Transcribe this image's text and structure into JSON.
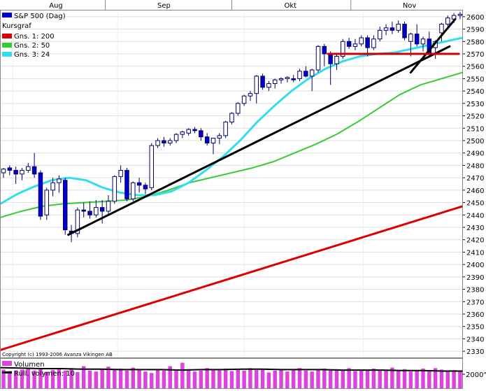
{
  "chart_data": [
    {
      "type": "candlestick",
      "title": "S&P 500 (Dag)",
      "months": [
        "Aug",
        "Sep",
        "Okt",
        "Nov"
      ],
      "ylim": [
        2325,
        2605
      ],
      "y_ticks": [
        2330,
        2340,
        2350,
        2360,
        2370,
        2380,
        2390,
        2400,
        2410,
        2420,
        2430,
        2440,
        2450,
        2460,
        2470,
        2480,
        2490,
        2500,
        2510,
        2520,
        2530,
        2540,
        2550,
        2560,
        2570,
        2580,
        2590,
        2600
      ],
      "grid": true,
      "legend_position": "top-left",
      "legend": [
        {
          "label": "S&P 500 (Dag)",
          "color": "#0000cc"
        },
        {
          "label": "Kursgraf",
          "color": ""
        },
        {
          "label": "Gns. 1: 200",
          "color": "#dd0000"
        },
        {
          "label": "Gns. 2: 50",
          "color": "#33cc33"
        },
        {
          "label": "Gns. 3: 24",
          "color": "#33ddee"
        }
      ],
      "copyright": "Copyright (c) 1993-2006 Avanza Vikingen AB",
      "candles": [
        [
          2474,
          2478,
          2470,
          2477
        ],
        [
          2478,
          2480,
          2472,
          2476
        ],
        [
          2476,
          2479,
          2465,
          2473
        ],
        [
          2473,
          2478,
          2468,
          2476
        ],
        [
          2476,
          2482,
          2474,
          2479
        ],
        [
          2479,
          2490,
          2470,
          2473
        ],
        [
          2474,
          2476,
          2436,
          2439
        ],
        [
          2440,
          2462,
          2436,
          2460
        ],
        [
          2460,
          2470,
          2455,
          2466
        ],
        [
          2466,
          2472,
          2458,
          2469
        ],
        [
          2468,
          2470,
          2424,
          2428
        ],
        [
          2427,
          2432,
          2418,
          2425
        ],
        [
          2425,
          2446,
          2422,
          2444
        ],
        [
          2444,
          2450,
          2438,
          2443
        ],
        [
          2443,
          2451,
          2437,
          2440
        ],
        [
          2440,
          2452,
          2438,
          2446
        ],
        [
          2446,
          2452,
          2433,
          2443
        ],
        [
          2443,
          2456,
          2440,
          2451
        ],
        [
          2451,
          2472,
          2449,
          2471
        ],
        [
          2471,
          2480,
          2466,
          2476
        ],
        [
          2476,
          2478,
          2451,
          2453
        ],
        [
          2453,
          2467,
          2451,
          2466
        ],
        [
          2466,
          2470,
          2458,
          2464
        ],
        [
          2464,
          2466,
          2457,
          2461
        ],
        [
          2462,
          2498,
          2460,
          2496
        ],
        [
          2496,
          2502,
          2494,
          2500
        ],
        [
          2500,
          2503,
          2495,
          2498
        ],
        [
          2498,
          2502,
          2496,
          2500
        ],
        [
          2500,
          2506,
          2498,
          2505
        ],
        [
          2505,
          2508,
          2502,
          2507
        ],
        [
          2506,
          2510,
          2504,
          2509
        ],
        [
          2509,
          2511,
          2506,
          2508
        ],
        [
          2508,
          2510,
          2500,
          2503
        ],
        [
          2503,
          2506,
          2496,
          2498
        ],
        [
          2498,
          2500,
          2489,
          2502
        ],
        [
          2502,
          2506,
          2497,
          2504
        ],
        [
          2504,
          2516,
          2502,
          2515
        ],
        [
          2515,
          2523,
          2513,
          2522
        ],
        [
          2522,
          2531,
          2520,
          2530
        ],
        [
          2530,
          2537,
          2528,
          2536
        ],
        [
          2536,
          2540,
          2532,
          2538
        ],
        [
          2538,
          2553,
          2530,
          2552
        ],
        [
          2552,
          2554,
          2541,
          2543
        ],
        [
          2543,
          2548,
          2540,
          2546
        ],
        [
          2546,
          2550,
          2542,
          2549
        ],
        [
          2549,
          2551,
          2546,
          2550
        ],
        [
          2550,
          2552,
          2547,
          2551
        ],
        [
          2550,
          2553,
          2547,
          2549
        ],
        [
          2550,
          2558,
          2548,
          2556
        ],
        [
          2556,
          2560,
          2551,
          2552
        ],
        [
          2552,
          2558,
          2540,
          2557
        ],
        [
          2557,
          2577,
          2555,
          2576
        ],
        [
          2576,
          2578,
          2560,
          2570
        ],
        [
          2570,
          2572,
          2545,
          2562
        ],
        [
          2562,
          2570,
          2557,
          2568
        ],
        [
          2568,
          2582,
          2566,
          2580
        ],
        [
          2580,
          2583,
          2574,
          2576
        ],
        [
          2576,
          2582,
          2573,
          2578
        ],
        [
          2578,
          2585,
          2576,
          2583
        ],
        [
          2583,
          2585,
          2568,
          2575
        ],
        [
          2575,
          2585,
          2573,
          2582
        ],
        [
          2582,
          2592,
          2580,
          2589
        ],
        [
          2589,
          2594,
          2585,
          2591
        ],
        [
          2591,
          2596,
          2586,
          2589
        ],
        [
          2589,
          2597,
          2587,
          2594
        ],
        [
          2594,
          2596,
          2581,
          2583
        ],
        [
          2580,
          2587,
          2568,
          2586
        ],
        [
          2586,
          2594,
          2576,
          2578
        ],
        [
          2578,
          2584,
          2572,
          2582
        ],
        [
          2582,
          2588,
          2568,
          2570
        ],
        [
          2575,
          2581,
          2566,
          2580
        ],
        [
          2587,
          2595,
          2580,
          2594
        ],
        [
          2594,
          2601,
          2592,
          2599
        ],
        [
          2598,
          2603,
          2595,
          2601
        ],
        [
          2601,
          2604,
          2598,
          2602
        ]
      ],
      "ma_200": {
        "start": 2331,
        "end": 2447
      },
      "ma_50": [
        2438,
        2443,
        2447,
        2449,
        2450,
        2451,
        2452,
        2455,
        2460,
        2466,
        2470,
        2474,
        2478,
        2483,
        2490,
        2497,
        2505,
        2515,
        2526,
        2537,
        2545,
        2550,
        2555
      ],
      "ma_24": [
        2449,
        2457,
        2463,
        2468,
        2470,
        2468,
        2462,
        2458,
        2456,
        2456,
        2459,
        2466,
        2476,
        2487,
        2500,
        2515,
        2528,
        2540,
        2550,
        2558,
        2564,
        2568,
        2570,
        2571,
        2574,
        2577,
        2580,
        2583
      ],
      "trendlines": [
        {
          "color": "#000000",
          "from": [
            10.5,
            2424
          ],
          "to": [
            72.3,
            2576
          ]
        },
        {
          "color": "#000000",
          "from": [
            66.0,
            2555
          ],
          "to": [
            73.2,
            2598
          ]
        },
        {
          "color": "#cc0000",
          "from": [
            52.6,
            2570
          ],
          "to": [
            73.8,
            2570
          ]
        }
      ]
    },
    {
      "type": "bar",
      "legend": [
        {
          "label": "Volumen",
          "color": "#dd44dd"
        },
        {
          "label": "Rull. volymen: 10",
          "color": "#000000"
        }
      ],
      "y_tick_labels": [
        "2000\""
      ],
      "values": [
        0.38,
        0.35,
        0.36,
        0.38,
        0.4,
        0.36,
        0.39,
        0.33,
        0.37,
        0.4,
        0.36,
        0.41,
        0.33,
        0.45,
        0.36,
        0.34,
        0.38,
        0.44,
        0.38,
        0.4,
        0.36,
        0.42,
        0.37,
        0.34,
        0.31,
        0.39,
        0.36,
        0.45,
        0.37,
        0.52,
        0.39,
        0.34,
        0.36,
        0.41,
        0.38,
        0.37,
        0.4,
        0.35,
        0.39,
        0.36,
        0.41,
        0.37,
        0.38,
        0.32,
        0.36,
        0.39,
        0.34,
        0.38,
        0.41,
        0.36,
        0.34,
        0.38,
        0.4,
        0.36,
        0.39,
        0.37,
        0.41,
        0.35,
        0.38,
        0.36,
        0.4,
        0.38,
        0.37,
        0.42,
        0.36,
        0.39,
        0.34,
        0.37,
        0.4,
        0.36,
        0.41,
        0.38,
        0.35,
        0.37,
        0.36
      ],
      "rolling_avg": [
        0.42,
        0.41,
        0.4,
        0.4,
        0.39,
        0.39,
        0.38,
        0.38,
        0.38,
        0.37,
        0.38,
        0.38,
        0.39,
        0.39,
        0.38,
        0.38,
        0.38,
        0.37,
        0.37,
        0.37,
        0.36,
        0.36,
        0.35,
        0.35
      ]
    }
  ]
}
